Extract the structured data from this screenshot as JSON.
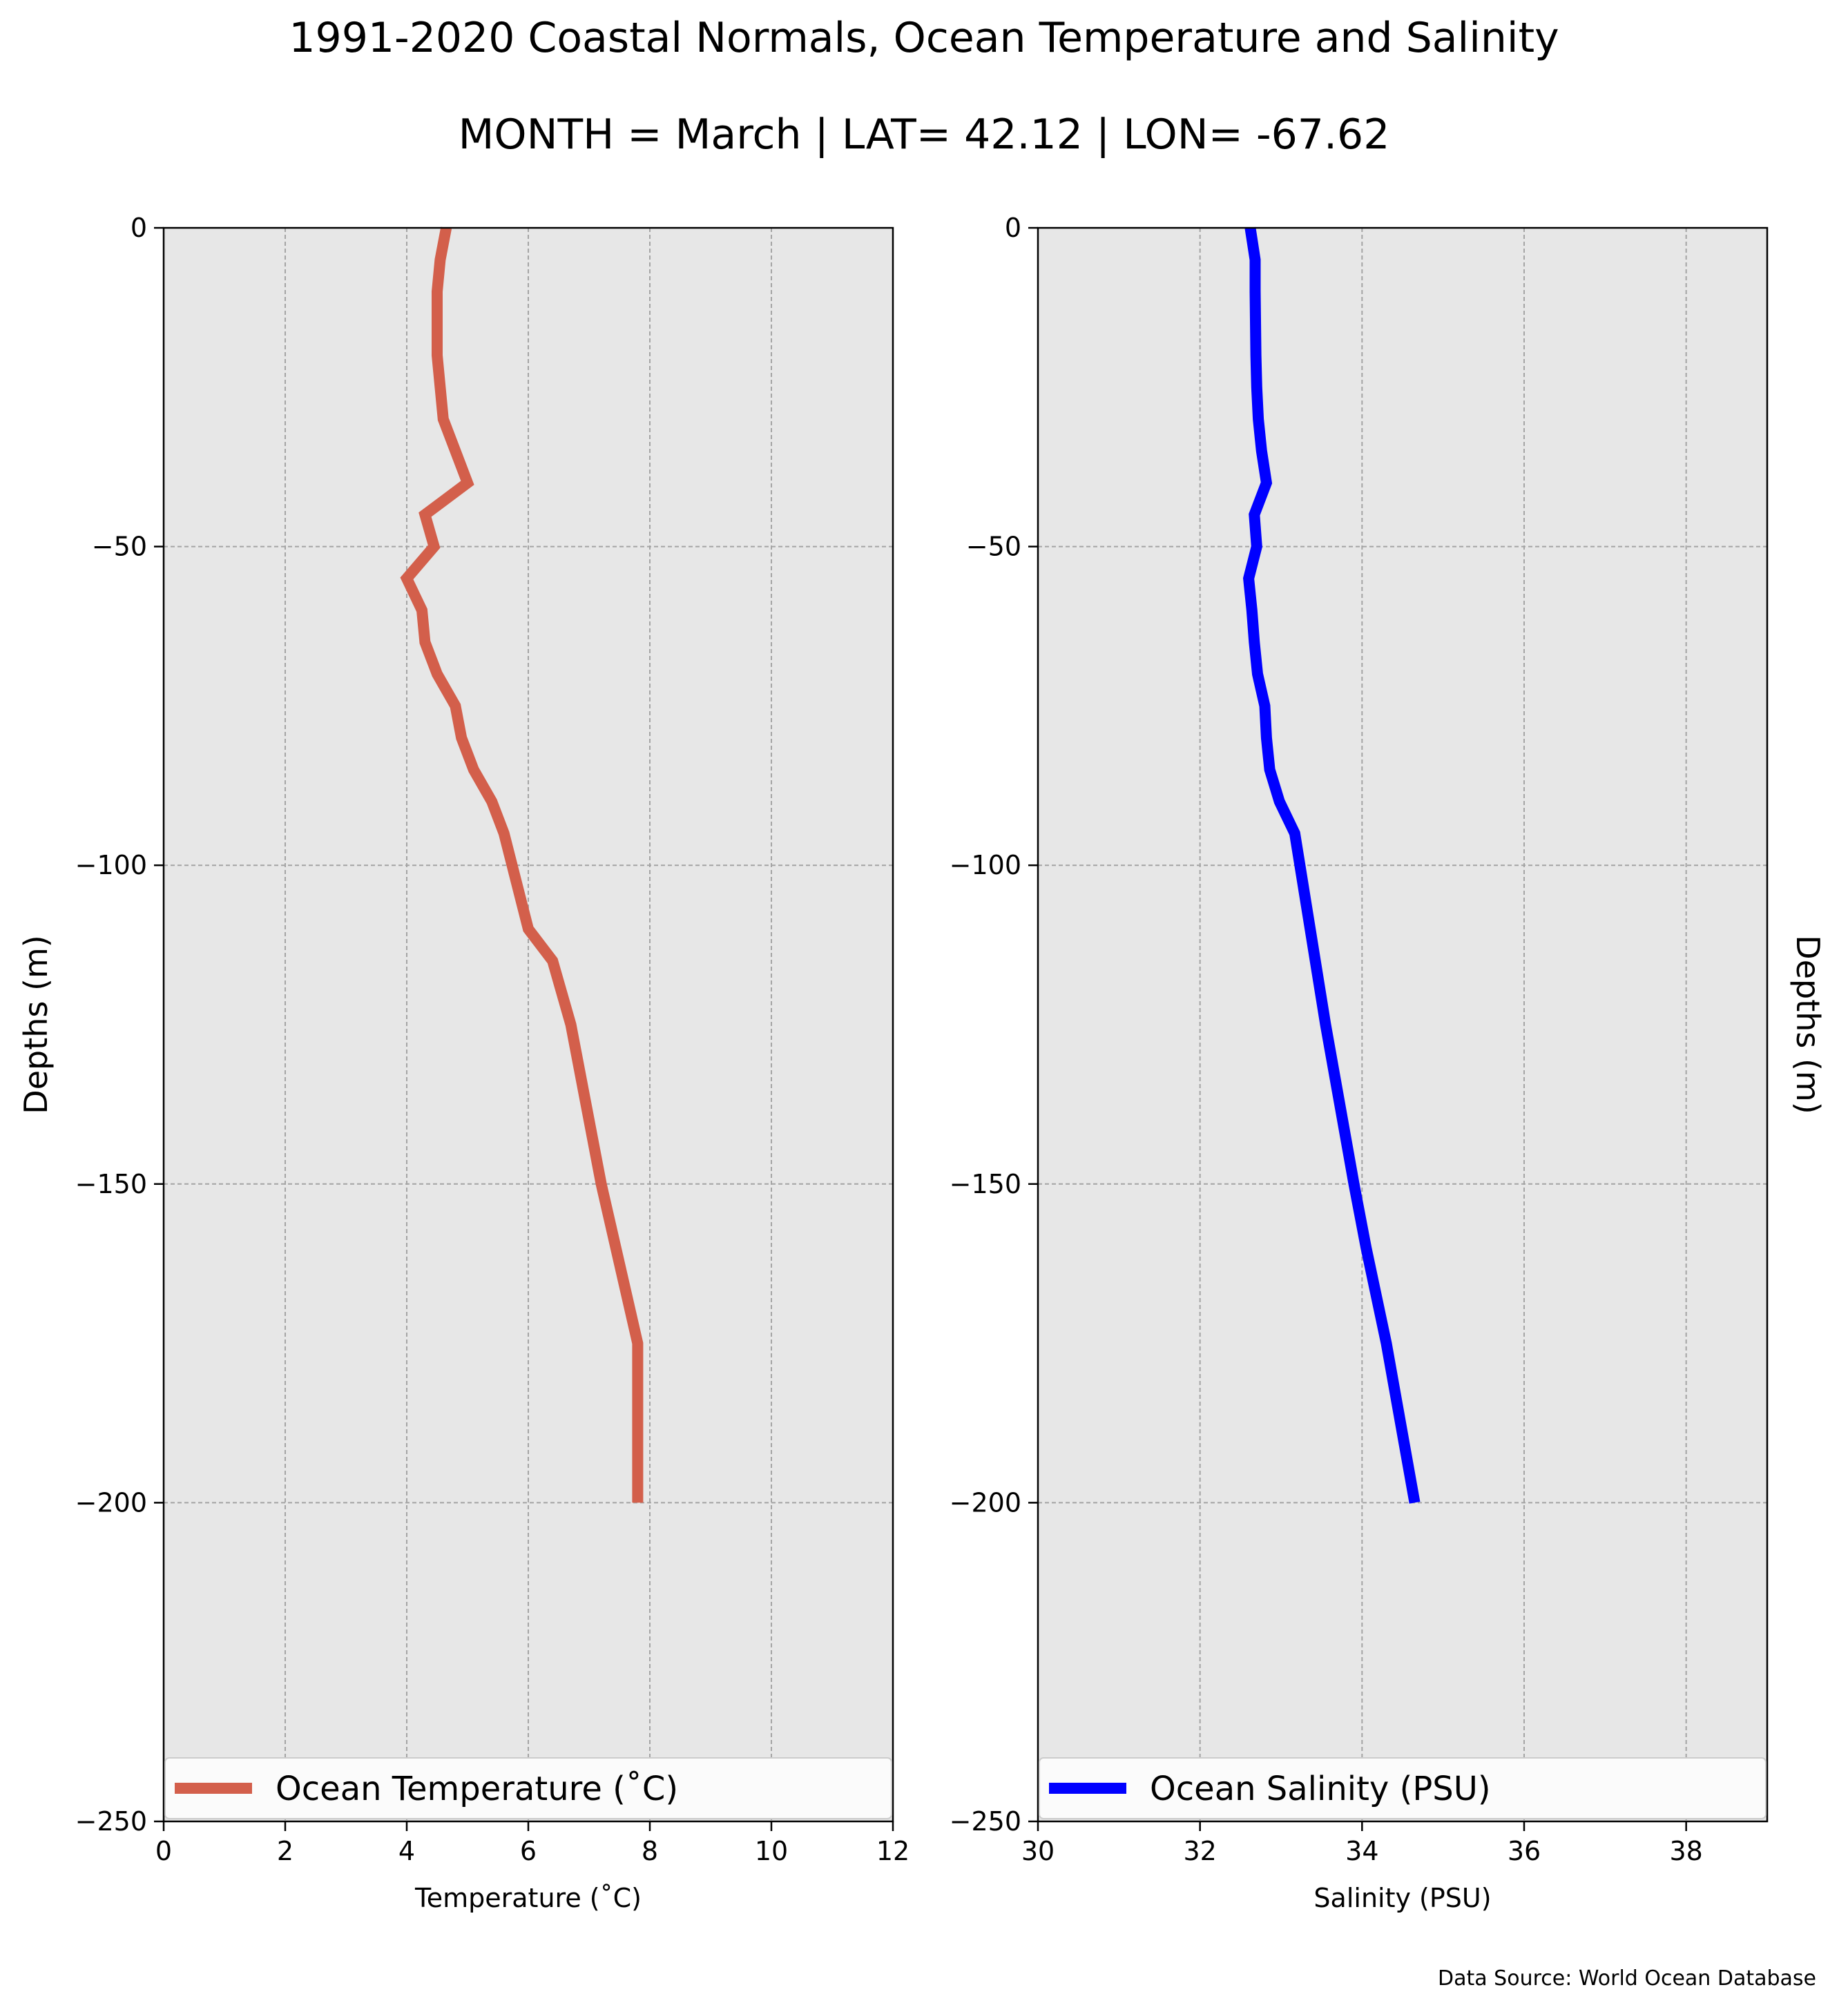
{
  "figure": {
    "title": "1991-2020 Coastal Normals, Ocean Temperature and Salinity",
    "subtitle": "MONTH = March | LAT= 42.12 | LON= -67.62",
    "ylabel_left": "Depths (m)",
    "ylabel_right": "Depths (m)",
    "source": "Data Source: World Ocean Database"
  },
  "chart_data": [
    {
      "type": "line",
      "xlabel": "Temperature ($^\\circ$C)",
      "xlabel_display": "Temperature (˚C)",
      "ylabel": "Depths (m)",
      "xlim": [
        0,
        12
      ],
      "ylim": [
        -250,
        0
      ],
      "xticks": [
        0,
        2,
        4,
        6,
        8,
        10,
        12
      ],
      "yticks": [
        0,
        -50,
        -100,
        -150,
        -200,
        -250
      ],
      "grid": true,
      "legend": "lower-center",
      "series": [
        {
          "name": "Ocean Temperature (˚C)",
          "color": "#d35f4b",
          "x": [
            4.65,
            4.55,
            4.5,
            4.5,
            4.55,
            4.6,
            4.8,
            5.0,
            4.3,
            4.45,
            4.0,
            4.25,
            4.3,
            4.5,
            4.8,
            4.9,
            5.1,
            5.4,
            5.6,
            6.0,
            6.4,
            6.7,
            7.2,
            7.8,
            7.8
          ],
          "y": [
            0,
            -5,
            -10,
            -20,
            -25,
            -30,
            -35,
            -40,
            -45,
            -50,
            -55,
            -60,
            -65,
            -70,
            -75,
            -80,
            -85,
            -90,
            -95,
            -110,
            -115,
            -125,
            -150,
            -175,
            -200
          ]
        }
      ]
    },
    {
      "type": "line",
      "xlabel": "Salinity (PSU)",
      "ylabel": "Depths (m)",
      "xlim": [
        30,
        39
      ],
      "ylim": [
        -250,
        0
      ],
      "xticks": [
        30,
        32,
        34,
        36,
        38
      ],
      "yticks": [
        0,
        -50,
        -100,
        -150,
        -200,
        -250
      ],
      "grid": true,
      "legend": "lower-center",
      "series": [
        {
          "name": "Ocean Salinity (PSU)",
          "color": "#0000ff",
          "x": [
            32.62,
            32.68,
            32.68,
            32.69,
            32.7,
            32.72,
            32.76,
            32.82,
            32.67,
            32.7,
            32.6,
            32.64,
            32.67,
            32.71,
            32.8,
            32.82,
            32.86,
            32.98,
            33.17,
            33.55,
            33.9,
            34.05,
            34.3,
            34.65
          ],
          "y": [
            0,
            -5,
            -10,
            -20,
            -25,
            -30,
            -35,
            -40,
            -45,
            -50,
            -55,
            -60,
            -65,
            -70,
            -75,
            -80,
            -85,
            -90,
            -95,
            -125,
            -150,
            -160,
            -175,
            -200
          ]
        }
      ]
    }
  ]
}
